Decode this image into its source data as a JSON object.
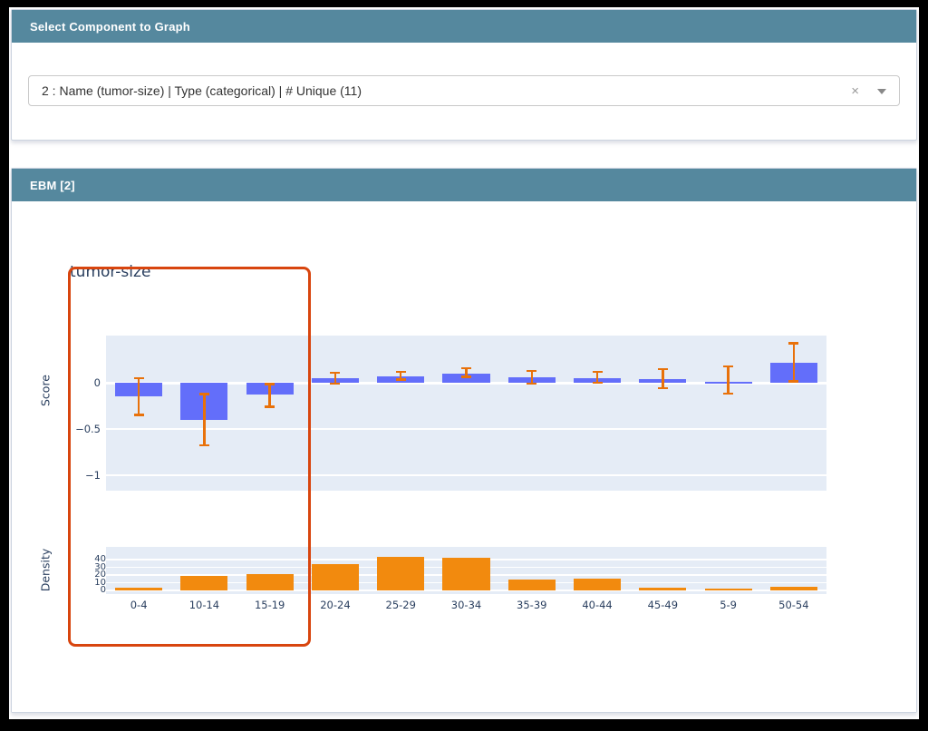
{
  "select_panel": {
    "title": "Select Component to Graph",
    "dropdown": {
      "value": "2 : Name (tumor-size) | Type (categorical) | # Unique (11)",
      "clear_icon": "×"
    }
  },
  "ebm_panel": {
    "title": "EBM [2]"
  },
  "chart_data": {
    "type": "bar",
    "title": "tumor-size",
    "categories": [
      "0-4",
      "10-14",
      "15-19",
      "20-24",
      "25-29",
      "30-34",
      "35-39",
      "40-44",
      "45-49",
      "5-9",
      "50-54"
    ],
    "series": [
      {
        "name": "Score",
        "type": "bar",
        "values": [
          -0.15,
          -0.4,
          -0.13,
          0.05,
          0.07,
          0.1,
          0.06,
          0.05,
          0.04,
          0.01,
          0.22
        ],
        "error_upper": [
          0.05,
          -0.12,
          -0.01,
          0.11,
          0.12,
          0.16,
          0.13,
          0.12,
          0.15,
          0.18,
          0.43
        ],
        "error_lower": [
          -0.35,
          -0.68,
          -0.26,
          -0.01,
          0.03,
          0.06,
          -0.01,
          0.0,
          -0.06,
          -0.12,
          0.01
        ],
        "bar_color": "#636efa",
        "error_color": "#e8710a"
      },
      {
        "name": "Density",
        "type": "bar",
        "values": [
          4,
          19,
          21,
          34,
          43,
          42,
          14,
          15,
          4,
          2,
          5
        ],
        "bar_color": "#f28a0e"
      }
    ],
    "score_axis": {
      "label": "Score",
      "ticks": [
        {
          "v": 0,
          "label": "0"
        },
        {
          "v": -0.5,
          "label": "−0.5"
        },
        {
          "v": -1,
          "label": "−1"
        }
      ],
      "range": [
        -1.17,
        0.51
      ]
    },
    "density_axis": {
      "label": "Density",
      "ticks": [
        {
          "v": 40,
          "label": "40"
        },
        {
          "v": 30,
          "label": "30"
        },
        {
          "v": 20,
          "label": "20"
        },
        {
          "v": 10,
          "label": "10"
        },
        {
          "v": 0,
          "label": "0"
        }
      ],
      "range": [
        0,
        44
      ]
    },
    "plot_bg": "#e5ecf6",
    "grid": true,
    "legend": "none",
    "selection_box": {
      "categories": [
        "0-4",
        "10-14",
        "15-19"
      ],
      "color": "#d8450e"
    }
  },
  "colors": {
    "header_bg": "#55889e",
    "header_text": "#ffffff",
    "panel_border": "#ccd4e0"
  }
}
